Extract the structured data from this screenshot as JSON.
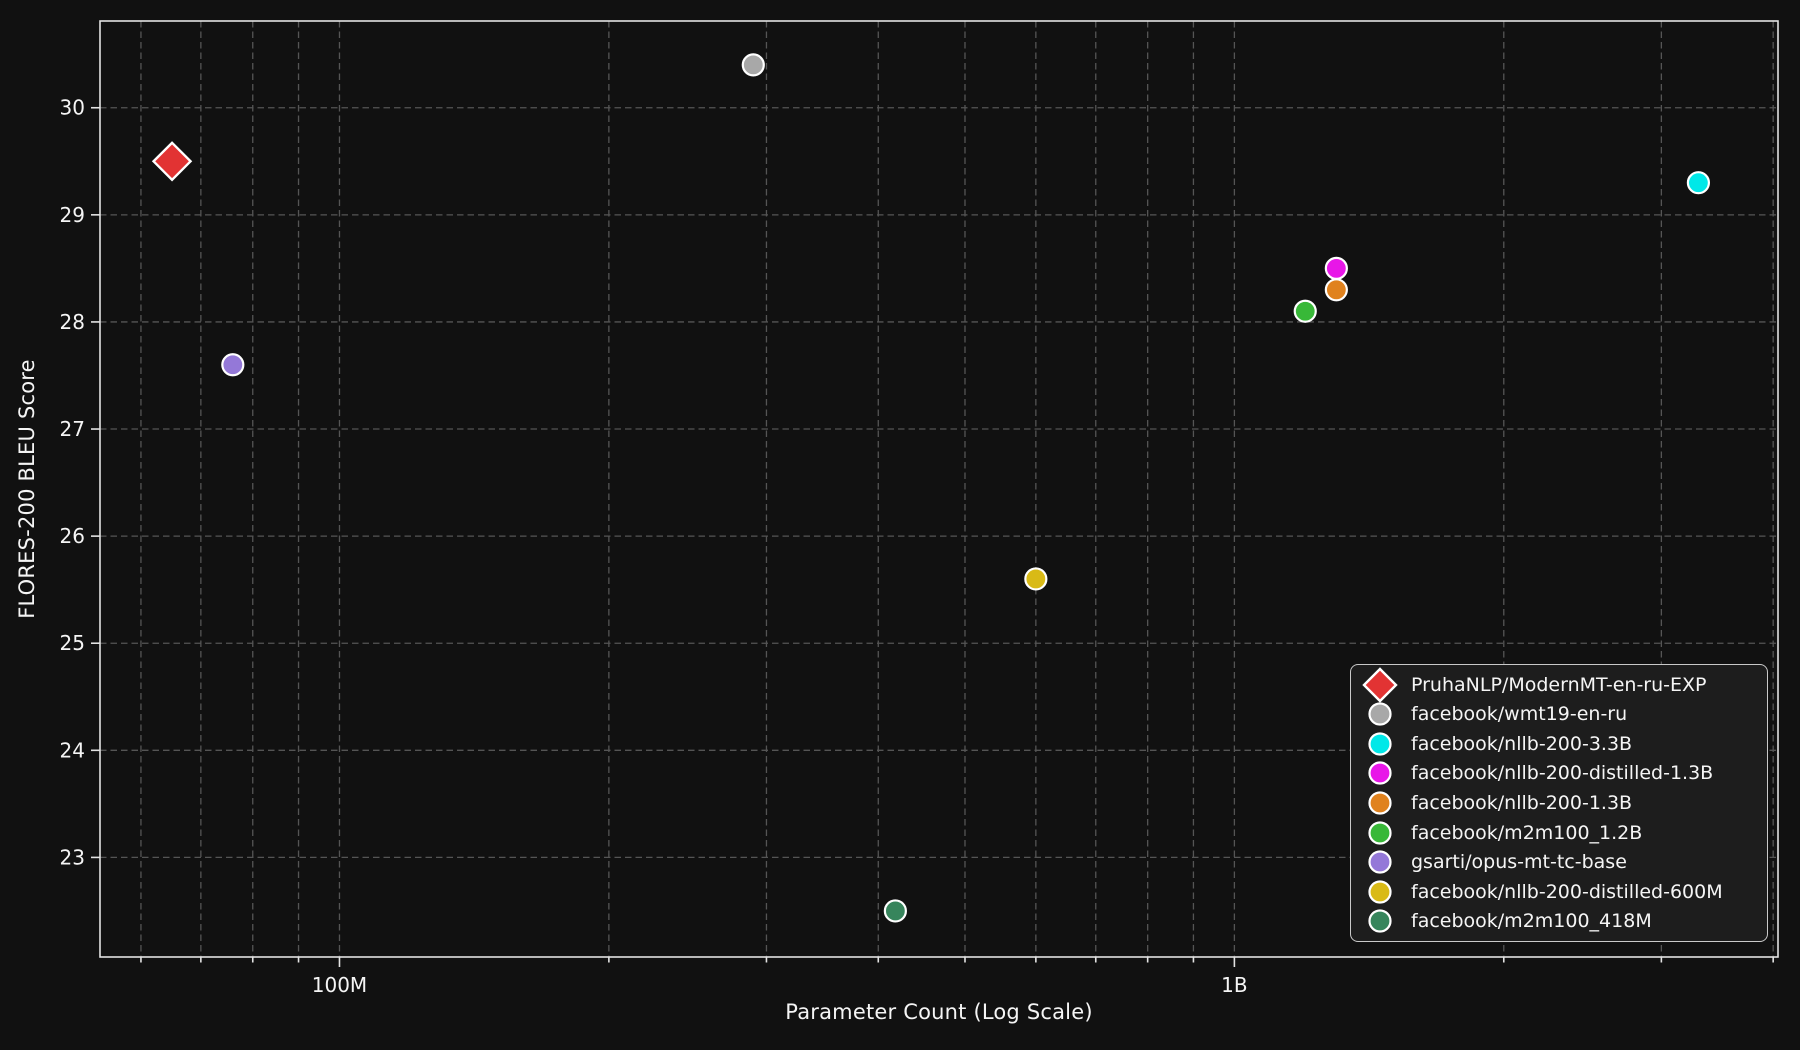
{
  "figure": {
    "background": "#111111",
    "plot_background": "#111111",
    "spine_color": "#e3e3e3",
    "grid_color": "#555555",
    "text_color": "#f5f5f5",
    "legend_background": "#1d1d1d",
    "legend_border": "#c9c9c9"
  },
  "chart_data": {
    "type": "scatter",
    "title": "",
    "xlabel": "Parameter Count (Log Scale)",
    "ylabel": "FLORES-200 BLEU Score",
    "x_scale": "log",
    "x_range": [
      54000000,
      4050000000
    ],
    "y_range": [
      22.07,
      30.81
    ],
    "grid": true,
    "legend_position": "lower right",
    "x_ticks": [
      {
        "value": 100000000,
        "label": "100M"
      },
      {
        "value": 1000000000,
        "label": "1B"
      }
    ],
    "x_gridlines": [
      60000000,
      70000000,
      80000000,
      90000000,
      100000000,
      200000000,
      300000000,
      400000000,
      500000000,
      600000000,
      700000000,
      800000000,
      900000000,
      1000000000,
      2000000000,
      3000000000,
      4000000000
    ],
    "y_ticks": [
      23,
      24,
      25,
      26,
      27,
      28,
      29,
      30
    ],
    "series": [
      {
        "name": "PruhaNLP/ModernMT-en-ru-EXP",
        "marker": "diamond",
        "color": "#e23333",
        "params": 65000000,
        "bleu": 29.5
      },
      {
        "name": "facebook/wmt19-en-ru",
        "marker": "circle",
        "color": "#a8a8a8",
        "params": 290000000,
        "bleu": 30.4
      },
      {
        "name": "facebook/nllb-200-3.3B",
        "marker": "circle",
        "color": "#00e8e8",
        "params": 3300000000,
        "bleu": 29.3
      },
      {
        "name": "facebook/nllb-200-distilled-1.3B",
        "marker": "circle",
        "color": "#e816e8",
        "params": 1300000000,
        "bleu": 28.5
      },
      {
        "name": "facebook/nllb-200-1.3B",
        "marker": "circle",
        "color": "#e0821e",
        "params": 1300000000,
        "bleu": 28.3
      },
      {
        "name": "facebook/m2m100_1.2B",
        "marker": "circle",
        "color": "#38b838",
        "params": 1200000000,
        "bleu": 28.1
      },
      {
        "name": "gsarti/opus-mt-tc-base",
        "marker": "circle",
        "color": "#9478d8",
        "params": 76000000,
        "bleu": 27.6
      },
      {
        "name": "facebook/nllb-200-distilled-600M",
        "marker": "circle",
        "color": "#d9ba16",
        "params": 600000000,
        "bleu": 25.6
      },
      {
        "name": "facebook/m2m100_418M",
        "marker": "circle",
        "color": "#37855c",
        "params": 418000000,
        "bleu": 22.5
      }
    ]
  }
}
